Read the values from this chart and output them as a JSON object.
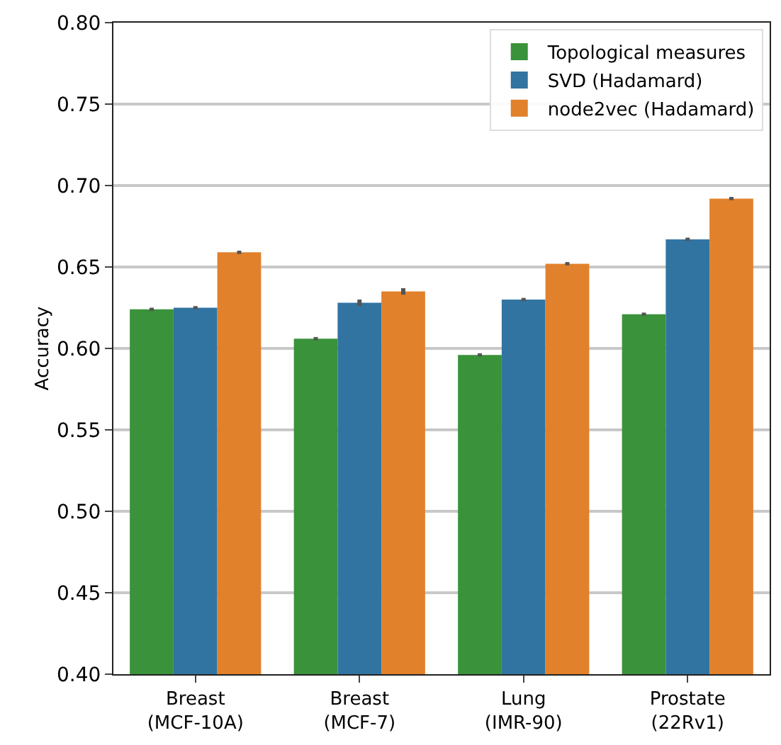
{
  "chart_data": {
    "type": "bar",
    "ylabel": "Accuracy",
    "categories": [
      "Breast (MCF-10A)",
      "Breast (MCF-7)",
      "Lung (IMR-90)",
      "Prostate (22Rv1)"
    ],
    "series": [
      {
        "name": "Topological measures",
        "color": "#3a923a",
        "values": [
          0.624,
          0.606,
          0.596,
          0.621
        ],
        "errors": [
          0.001,
          0.001,
          0.001,
          0.001
        ]
      },
      {
        "name": "SVD (Hadamard)",
        "color": "#3274a1",
        "values": [
          0.625,
          0.628,
          0.63,
          0.667
        ],
        "errors": [
          0.001,
          0.002,
          0.001,
          0.001
        ]
      },
      {
        "name": "node2vec (Hadamard)",
        "color": "#e1812c",
        "values": [
          0.659,
          0.635,
          0.652,
          0.692
        ],
        "errors": [
          0.001,
          0.002,
          0.001,
          0.001
        ]
      }
    ],
    "ylim": [
      0.4,
      0.8
    ],
    "yticks": [
      {
        "value": 0.4,
        "label": "0.40"
      },
      0.45,
      {
        "value": 0.5,
        "label": "0.50"
      },
      0.55,
      {
        "value": 0.6,
        "label": "0.60"
      },
      0.65,
      {
        "value": 0.7,
        "label": "0.70"
      },
      0.75,
      {
        "value": 0.8,
        "label": "0.80"
      }
    ],
    "grid": "y",
    "legend": "top right"
  }
}
